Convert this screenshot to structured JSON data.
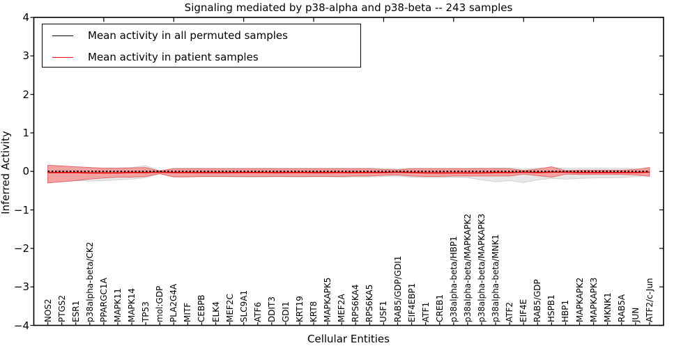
{
  "title": "Signaling mediated by p38-alpha and p38-beta -- 243 samples",
  "legend": [
    {
      "label": "Mean activity in all permuted samples",
      "color": "#000000"
    },
    {
      "label": "Mean activity in patient samples",
      "color": "#ff0000"
    }
  ],
  "colors": {
    "permuted_band_fill": "#e7e7e7",
    "permuted_band_edge": "#d2d2d2",
    "patient_band_fill": "#f4a2a2",
    "patient_band_edge": "#e06a6a",
    "permuted_line": "#000000",
    "patient_line": "#ee0000",
    "axis": "#000000"
  },
  "chart_data": {
    "type": "line",
    "title": "Signaling mediated by p38-alpha and p38-beta -- 243 samples",
    "xlabel": "Cellular Entities",
    "ylabel": "Inferred Activity",
    "ylim": [
      -4,
      4
    ],
    "xlim": [
      0,
      45
    ],
    "ytick_labels": [
      "4",
      "3",
      "2",
      "1",
      "0",
      "−1",
      "−2",
      "−3",
      "−4"
    ],
    "ytick_values": [
      4,
      3,
      2,
      1,
      0,
      -1,
      -2,
      -3,
      -4
    ],
    "top_axis_ticks": [
      5,
      10,
      15,
      20,
      25,
      30,
      35,
      40
    ],
    "legend_position": "upper left",
    "grid": false,
    "categories": [
      "NOS2",
      "PTGS2",
      "ESR1",
      "p38alpha-beta/CK2",
      "PPARGC1A",
      "MAPK11",
      "MAPK14",
      "TP53",
      "mol:GDP",
      "PLA2G4A",
      "MITF",
      "CEBPB",
      "ELK4",
      "MEF2C",
      "SLC9A1",
      "ATF6",
      "DDIT3",
      "GDI1",
      "KRT19",
      "KRT8",
      "MAPKAPK5",
      "MEF2A",
      "RPS6KA4",
      "RPS6KA5",
      "USF1",
      "RAB5/GDP/GDI1",
      "EIF4EBP1",
      "ATF1",
      "CREB1",
      "p38alpha-beta/HBP1",
      "p38alpha-beta/MAPKAPK2",
      "p38alpha-beta/MAPKAPK3",
      "p38alpha-beta/MNK1",
      "ATF2",
      "EIF4E",
      "RAB5/GDP",
      "HSPB1",
      "HBP1",
      "MAPKAPK2",
      "MAPKAPK3",
      "MKNK1",
      "RAB5A",
      "JUN",
      "ATF2/c-Jun"
    ],
    "series": [
      {
        "name": "Mean activity in all permuted samples",
        "style": "dashed",
        "values": [
          0,
          0,
          0,
          0,
          0,
          0,
          0,
          0,
          0,
          0,
          0,
          0,
          0,
          0,
          0,
          0,
          0,
          0,
          0,
          0,
          0,
          0,
          0,
          0,
          0,
          0,
          0,
          0,
          0,
          0,
          0,
          0,
          0,
          0,
          0,
          0,
          0,
          0,
          0,
          0,
          0,
          0,
          0,
          0
        ]
      },
      {
        "name": "Mean activity in patient samples",
        "style": "solid",
        "values": [
          -0.03,
          -0.03,
          -0.03,
          -0.04,
          -0.04,
          -0.04,
          -0.03,
          -0.03,
          -0.02,
          -0.03,
          -0.03,
          -0.03,
          -0.03,
          -0.03,
          -0.03,
          -0.03,
          -0.03,
          -0.03,
          -0.03,
          -0.03,
          -0.03,
          -0.03,
          -0.03,
          -0.03,
          -0.03,
          -0.02,
          -0.03,
          -0.04,
          -0.04,
          -0.04,
          -0.04,
          -0.04,
          -0.03,
          -0.03,
          -0.02,
          -0.03,
          -0.02,
          -0.02,
          -0.03,
          -0.03,
          -0.03,
          -0.03,
          -0.03,
          -0.02
        ]
      }
    ],
    "bands": [
      {
        "name": "permuted samples ± std",
        "upper": [
          0.12,
          0.12,
          0.11,
          0.1,
          0.09,
          0.09,
          0.1,
          0.15,
          0.02,
          0.08,
          0.08,
          0.08,
          0.08,
          0.08,
          0.08,
          0.08,
          0.08,
          0.08,
          0.08,
          0.08,
          0.08,
          0.08,
          0.08,
          0.08,
          0.07,
          0.06,
          0.08,
          0.08,
          0.08,
          0.08,
          0.08,
          0.09,
          0.09,
          0.09,
          0.06,
          0.08,
          0.1,
          0.08,
          0.08,
          0.08,
          0.08,
          0.08,
          0.07,
          0.06
        ],
        "lower": [
          -0.22,
          -0.23,
          -0.24,
          -0.25,
          -0.24,
          -0.22,
          -0.2,
          -0.16,
          -0.06,
          -0.15,
          -0.15,
          -0.14,
          -0.14,
          -0.14,
          -0.15,
          -0.15,
          -0.14,
          -0.14,
          -0.15,
          -0.14,
          -0.14,
          -0.15,
          -0.14,
          -0.14,
          -0.13,
          -0.12,
          -0.15,
          -0.16,
          -0.16,
          -0.15,
          -0.16,
          -0.22,
          -0.27,
          -0.24,
          -0.29,
          -0.22,
          -0.18,
          -0.2,
          -0.18,
          -0.17,
          -0.17,
          -0.16,
          -0.13,
          -0.1
        ]
      },
      {
        "name": "patient samples ± std",
        "upper": [
          0.16,
          0.14,
          0.12,
          0.1,
          0.08,
          0.08,
          0.09,
          0.1,
          0.01,
          0.07,
          0.07,
          0.07,
          0.07,
          0.07,
          0.07,
          0.07,
          0.07,
          0.07,
          0.07,
          0.07,
          0.07,
          0.07,
          0.07,
          0.07,
          0.05,
          0.04,
          0.07,
          0.07,
          0.07,
          0.07,
          0.07,
          0.07,
          0.07,
          0.07,
          0.02,
          0.06,
          0.12,
          0.02,
          0.03,
          0.03,
          0.03,
          0.03,
          0.05,
          0.1
        ],
        "lower": [
          -0.3,
          -0.27,
          -0.24,
          -0.2,
          -0.17,
          -0.15,
          -0.15,
          -0.13,
          -0.06,
          -0.14,
          -0.14,
          -0.13,
          -0.13,
          -0.13,
          -0.13,
          -0.13,
          -0.13,
          -0.13,
          -0.13,
          -0.13,
          -0.13,
          -0.13,
          -0.12,
          -0.12,
          -0.1,
          -0.09,
          -0.12,
          -0.13,
          -0.13,
          -0.12,
          -0.12,
          -0.12,
          -0.12,
          -0.12,
          -0.07,
          -0.11,
          -0.15,
          -0.07,
          -0.08,
          -0.08,
          -0.08,
          -0.08,
          -0.09,
          -0.13
        ]
      }
    ]
  }
}
